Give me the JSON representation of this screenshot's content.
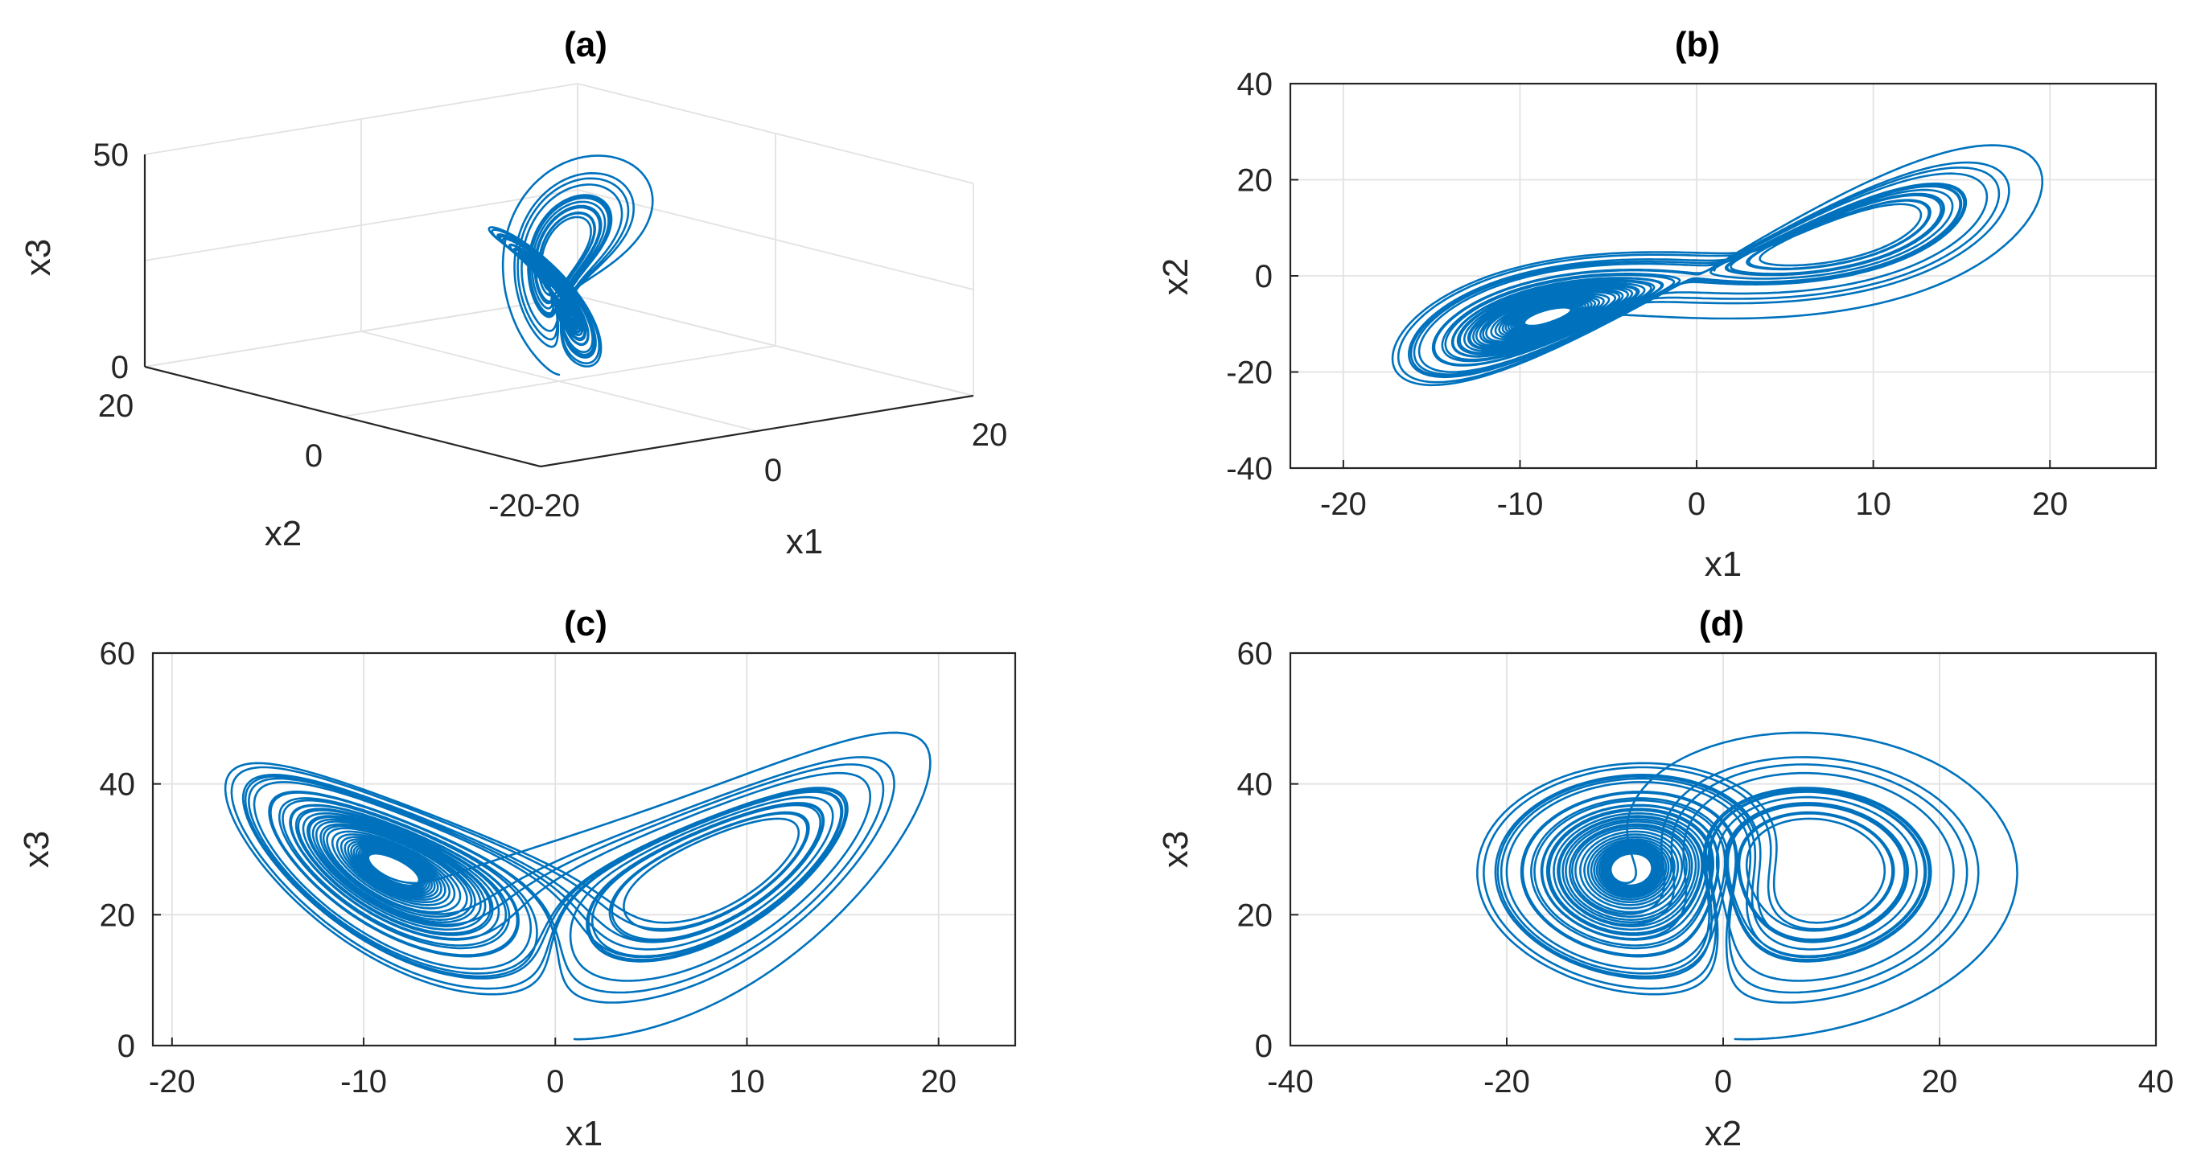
{
  "chart_data": [
    {
      "panel": "a",
      "type": "line",
      "projection": "3d",
      "title": "(a)",
      "xlabel": "x1",
      "ylabel": "x2",
      "zlabel": "x3",
      "xlim": [
        -20,
        20
      ],
      "ylim": [
        -20,
        20
      ],
      "zlim": [
        0,
        50
      ],
      "xticks": [
        "-20",
        "0",
        "20"
      ],
      "yticks": [
        "20",
        "0",
        "-20"
      ],
      "zticks": [
        "0",
        "50"
      ],
      "grid": true,
      "series": [
        {
          "name": "trajectory",
          "values": "3D Lorenz-type trajectory (x1, x2, x3)"
        }
      ]
    },
    {
      "panel": "b",
      "type": "line",
      "title": "(b)",
      "xlabel": "x1",
      "ylabel": "x2",
      "xlim": [
        -23,
        26
      ],
      "ylim": [
        -40,
        40
      ],
      "xticks": [
        "-20",
        "-10",
        "0",
        "10",
        "20"
      ],
      "yticks": [
        "-40",
        "-20",
        "0",
        "20",
        "40"
      ],
      "grid": true,
      "series": [
        {
          "name": "trajectory",
          "values": "x1 vs x2 projection"
        }
      ]
    },
    {
      "panel": "c",
      "type": "line",
      "title": "(c)",
      "xlabel": "x1",
      "ylabel": "x3",
      "xlim": [
        -21,
        24
      ],
      "ylim": [
        0,
        60
      ],
      "xticks": [
        "-20",
        "-10",
        "0",
        "10",
        "20"
      ],
      "yticks": [
        "0",
        "20",
        "40",
        "60"
      ],
      "grid": true,
      "series": [
        {
          "name": "trajectory",
          "values": "x1 vs x3 projection"
        }
      ]
    },
    {
      "panel": "d",
      "type": "line",
      "title": "(d)",
      "xlabel": "x2",
      "ylabel": "x3",
      "xlim": [
        -40,
        40
      ],
      "ylim": [
        0,
        60
      ],
      "xticks": [
        "-40",
        "-20",
        "0",
        "20",
        "40"
      ],
      "yticks": [
        "0",
        "20",
        "40",
        "60"
      ],
      "grid": true,
      "series": [
        {
          "name": "trajectory",
          "values": "x2 vs x3 projection"
        }
      ]
    }
  ],
  "colors": {
    "line": "#0072bd",
    "axis": "#262626",
    "grid": "#e2e2e2"
  }
}
